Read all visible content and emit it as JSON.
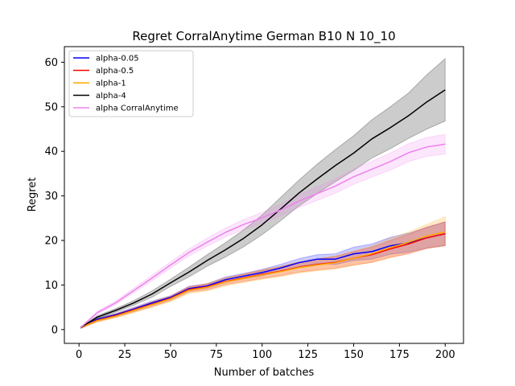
{
  "chart_data": {
    "type": "line",
    "title": "Regret CorralAnytime German B10 N 10_10",
    "xlabel": "Number of batches",
    "ylabel": "Regret",
    "xlim": [
      -8,
      210
    ],
    "ylim": [
      -3.1,
      63.5
    ],
    "xticks": [
      0,
      25,
      50,
      75,
      100,
      125,
      150,
      175,
      200
    ],
    "yticks": [
      0,
      10,
      20,
      30,
      40,
      50,
      60
    ],
    "x": [
      1,
      10,
      20,
      30,
      40,
      50,
      60,
      70,
      80,
      90,
      100,
      110,
      120,
      130,
      140,
      150,
      160,
      170,
      180,
      190,
      200
    ],
    "legend_position": "upper-left",
    "series": [
      {
        "name": "alpha-0.05",
        "color": "#0000ff",
        "values": [
          0.5,
          2.3,
          3.3,
          4.6,
          6.0,
          7.2,
          9.2,
          9.8,
          11.2,
          12.0,
          12.8,
          13.8,
          15.0,
          15.8,
          15.8,
          17.0,
          17.5,
          18.8,
          19.5,
          20.6,
          21.5
        ],
        "band_lower": [
          0.3,
          2.0,
          3.0,
          4.2,
          5.6,
          6.8,
          8.7,
          9.3,
          10.6,
          11.4,
          12.1,
          13.0,
          14.1,
          14.8,
          14.6,
          15.5,
          15.8,
          16.9,
          17.4,
          18.3,
          18.9
        ],
        "band_upper": [
          0.7,
          2.6,
          3.6,
          5.0,
          6.4,
          7.6,
          9.7,
          10.3,
          11.8,
          12.6,
          13.5,
          14.6,
          15.9,
          16.8,
          17.0,
          18.5,
          19.2,
          20.7,
          21.6,
          22.9,
          24.1
        ]
      },
      {
        "name": "alpha-0.5",
        "color": "#ff0000",
        "values": [
          0.5,
          2.1,
          3.1,
          4.4,
          5.7,
          7.0,
          9.0,
          9.6,
          10.8,
          11.6,
          12.4,
          13.1,
          14.0,
          14.6,
          15.1,
          16.0,
          16.8,
          18.1,
          19.2,
          20.6,
          21.5
        ],
        "band_lower": [
          0.3,
          1.8,
          2.8,
          4.0,
          5.2,
          6.5,
          8.4,
          8.9,
          10.1,
          10.8,
          11.5,
          12.1,
          12.9,
          13.4,
          13.8,
          14.5,
          15.1,
          16.2,
          17.0,
          18.2,
          18.8
        ],
        "band_upper": [
          0.7,
          2.4,
          3.5,
          4.8,
          6.2,
          7.5,
          9.6,
          10.3,
          11.5,
          12.4,
          13.3,
          14.1,
          15.1,
          15.8,
          16.4,
          17.5,
          18.5,
          20.0,
          21.4,
          23.0,
          24.2
        ]
      },
      {
        "name": "alpha-1",
        "color": "#ffa500",
        "values": [
          0.5,
          2.0,
          3.0,
          4.3,
          5.6,
          6.9,
          8.8,
          9.5,
          10.7,
          11.5,
          12.3,
          13.0,
          13.9,
          14.5,
          15.0,
          16.0,
          17.0,
          18.4,
          19.6,
          21.0,
          21.9
        ],
        "band_lower": [
          0.3,
          1.7,
          2.6,
          3.8,
          5.0,
          6.3,
          8.1,
          8.7,
          9.8,
          10.6,
          11.3,
          11.9,
          12.7,
          13.2,
          13.6,
          14.4,
          15.1,
          16.2,
          17.2,
          18.3,
          18.8
        ],
        "band_upper": [
          0.7,
          2.4,
          3.5,
          4.8,
          6.2,
          7.5,
          9.5,
          10.3,
          11.6,
          12.5,
          13.4,
          14.2,
          15.2,
          15.9,
          16.5,
          17.6,
          18.8,
          20.5,
          21.9,
          23.6,
          25.3
        ]
      },
      {
        "name": "alpha-4",
        "color": "#000000",
        "values": [
          0.5,
          2.8,
          4.3,
          6.0,
          8.0,
          10.5,
          12.9,
          15.5,
          17.9,
          20.5,
          23.5,
          27.0,
          30.6,
          33.8,
          36.8,
          39.6,
          42.8,
          45.3,
          48.0,
          51.1,
          53.8
        ],
        "band_lower": [
          0.4,
          2.5,
          3.9,
          5.5,
          7.3,
          9.7,
          11.8,
          14.2,
          16.3,
          18.6,
          21.3,
          24.4,
          27.7,
          30.5,
          33.2,
          35.7,
          38.5,
          40.6,
          42.9,
          45.0,
          46.8
        ],
        "band_upper": [
          0.6,
          3.1,
          4.7,
          6.5,
          8.7,
          11.3,
          14.0,
          16.8,
          19.5,
          22.4,
          25.7,
          29.6,
          33.5,
          37.1,
          40.4,
          43.5,
          47.1,
          50.0,
          53.1,
          57.2,
          60.8
        ]
      },
      {
        "name": "alpha CorralAnytime",
        "color": "#ee82ee",
        "values": [
          0.5,
          3.8,
          6.0,
          8.8,
          11.6,
          14.5,
          17.3,
          19.6,
          21.8,
          23.6,
          25.1,
          26.8,
          28.8,
          30.5,
          32.2,
          34.3,
          36.0,
          37.7,
          39.7,
          41.0,
          41.6
        ],
        "band_lower": [
          0.4,
          3.5,
          5.6,
          8.3,
          11.0,
          13.8,
          16.5,
          18.7,
          20.8,
          22.5,
          23.9,
          25.5,
          27.4,
          29.0,
          30.6,
          32.6,
          34.2,
          35.8,
          37.7,
          38.9,
          39.4
        ],
        "band_upper": [
          0.6,
          4.1,
          6.4,
          9.3,
          12.2,
          15.2,
          18.1,
          20.5,
          22.8,
          24.7,
          26.3,
          28.1,
          30.2,
          32.0,
          33.8,
          36.0,
          37.8,
          39.6,
          41.7,
          43.1,
          43.8
        ]
      }
    ]
  }
}
